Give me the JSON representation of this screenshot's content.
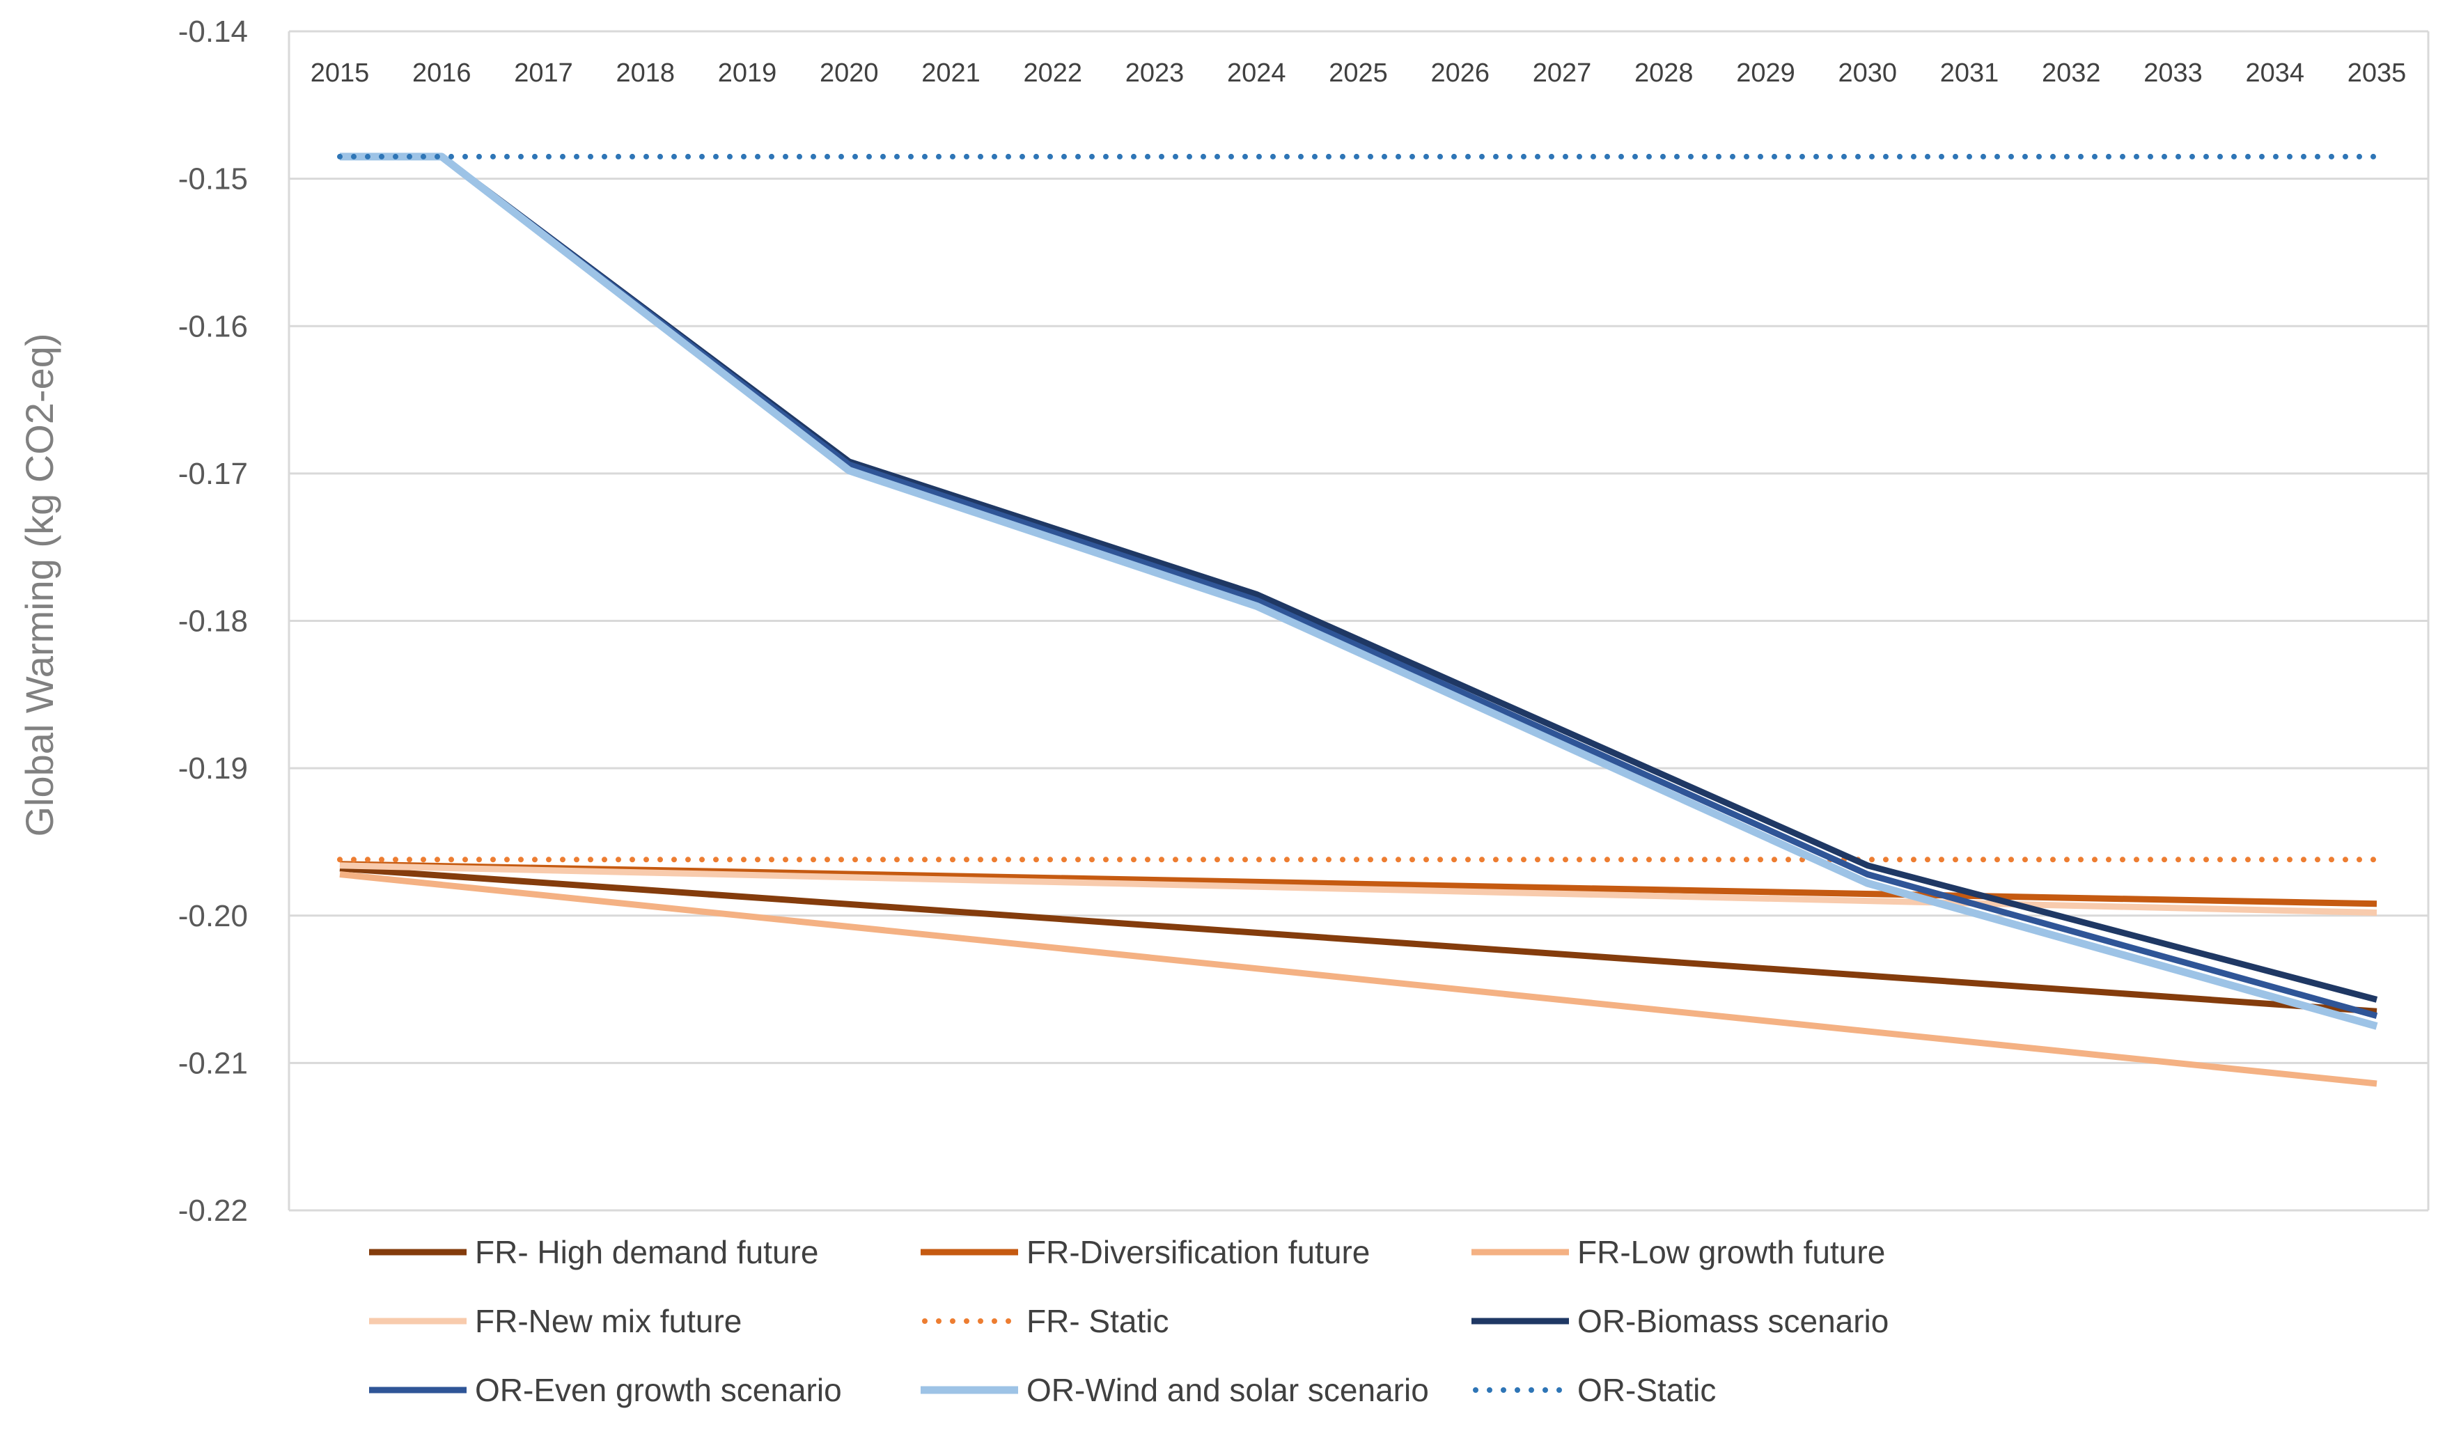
{
  "chart_data": {
    "type": "line",
    "title": "",
    "xlabel": "",
    "ylabel": "Global Warming (kg CO2-eq)",
    "x": [
      2015,
      2016,
      2017,
      2018,
      2019,
      2020,
      2021,
      2022,
      2023,
      2024,
      2025,
      2026,
      2027,
      2028,
      2029,
      2030,
      2031,
      2032,
      2033,
      2034,
      2035
    ],
    "x_tick_labels": [
      "2015",
      "2016",
      "2017",
      "2018",
      "2019",
      "2020",
      "2021",
      "2022",
      "2023",
      "2024",
      "2025",
      "2026",
      "2027",
      "2028",
      "2029",
      "2030",
      "2031",
      "2032",
      "2033",
      "2034",
      "2035"
    ],
    "x_axis_position": "top",
    "y_ticks": [
      -0.14,
      -0.15,
      -0.16,
      -0.17,
      -0.18,
      -0.19,
      -0.2,
      -0.21,
      -0.22
    ],
    "y_tick_labels": [
      "-0.14",
      "-0.15",
      "-0.16",
      "-0.17",
      "-0.18",
      "-0.19",
      "-0.20",
      "-0.21",
      "-0.22"
    ],
    "ylim": [
      -0.22,
      -0.14
    ],
    "grid": "horizontal",
    "legend_position": "bottom",
    "series": [
      {
        "name": "FR- High demand future",
        "color": "#843C0C",
        "style": "solid",
        "width": 9,
        "x": [
          2015,
          2035
        ],
        "values": [
          -0.1968,
          -0.2065
        ]
      },
      {
        "name": "FR-Diversification future",
        "color": "#C55A11",
        "style": "solid",
        "width": 9,
        "x": [
          2015,
          2035
        ],
        "values": [
          -0.1965,
          -0.1992
        ]
      },
      {
        "name": "FR-Low growth future",
        "color": "#F4B183",
        "style": "solid",
        "width": 9,
        "x": [
          2015,
          2035
        ],
        "values": [
          -0.1972,
          -0.2114
        ]
      },
      {
        "name": "FR-New mix future",
        "color": "#F8CBAD",
        "style": "solid",
        "width": 9,
        "x": [
          2015,
          2035
        ],
        "values": [
          -0.1966,
          -0.1998
        ]
      },
      {
        "name": "FR- Static",
        "color": "#ED7D31",
        "style": "dotted",
        "width": 8,
        "x": [
          2015,
          2035
        ],
        "values": [
          -0.1962,
          -0.1962
        ]
      },
      {
        "name": "OR-Biomass scenario",
        "color": "#1F3864",
        "style": "solid",
        "width": 9,
        "x": [
          2015,
          2016,
          2020,
          2024,
          2030,
          2035
        ],
        "values": [
          -0.1485,
          -0.1485,
          -0.1692,
          -0.1782,
          -0.1966,
          -0.2057
        ]
      },
      {
        "name": "OR-Even growth scenario",
        "color": "#2F5597",
        "style": "solid",
        "width": 9,
        "x": [
          2015,
          2016,
          2020,
          2024,
          2030,
          2035
        ],
        "values": [
          -0.1485,
          -0.1485,
          -0.1694,
          -0.1786,
          -0.1972,
          -0.2068
        ]
      },
      {
        "name": "OR-Wind and solar scenario",
        "color": "#9DC3E6",
        "style": "solid",
        "width": 11,
        "x": [
          2015,
          2016,
          2020,
          2024,
          2030,
          2035
        ],
        "values": [
          -0.1485,
          -0.1485,
          -0.1698,
          -0.179,
          -0.1978,
          -0.2075
        ]
      },
      {
        "name": "OR-Static",
        "color": "#2E75B6",
        "style": "dotted",
        "width": 8,
        "x": [
          2015,
          2035
        ],
        "values": [
          -0.1485,
          -0.1485
        ]
      }
    ]
  }
}
